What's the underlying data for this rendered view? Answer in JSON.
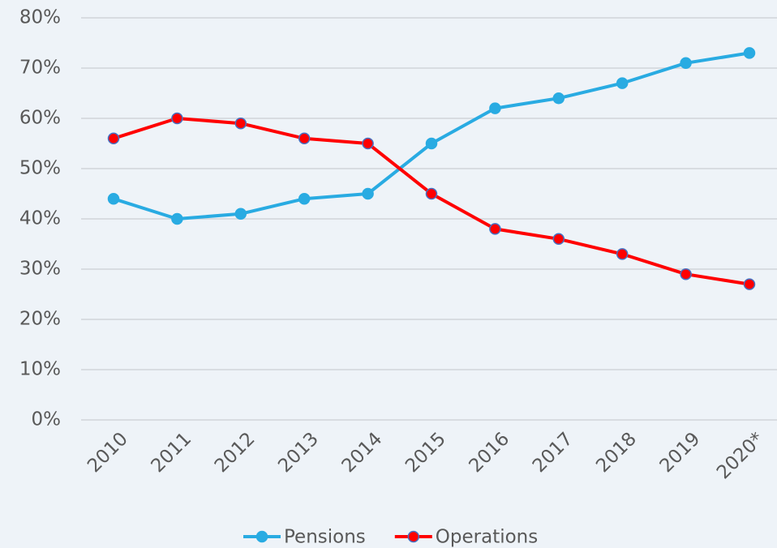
{
  "chart_data": {
    "type": "line",
    "categories": [
      "2010",
      "2011",
      "2012",
      "2013",
      "2014",
      "2015",
      "2016",
      "2017",
      "2018",
      "2019",
      "2020*"
    ],
    "series": [
      {
        "name": "Pensions",
        "color": "#29abe2",
        "values": [
          44,
          40,
          41,
          44,
          45,
          55,
          62,
          64,
          67,
          71,
          73
        ]
      },
      {
        "name": "Operations",
        "color": "#ff0000",
        "values": [
          56,
          60,
          59,
          56,
          55,
          45,
          38,
          36,
          33,
          29,
          27
        ]
      }
    ],
    "ylim": [
      0,
      80
    ],
    "yticks": [
      {
        "value": 0,
        "label": "0%"
      },
      {
        "value": 10,
        "label": "10%"
      },
      {
        "value": 20,
        "label": "20%"
      },
      {
        "value": 30,
        "label": "30%"
      },
      {
        "value": 40,
        "label": "40%"
      },
      {
        "value": 50,
        "label": "50%"
      },
      {
        "value": 60,
        "label": "60%"
      },
      {
        "value": 70,
        "label": "70%"
      },
      {
        "value": 80,
        "label": "80%"
      }
    ],
    "grid": true,
    "legend": "bottom"
  }
}
